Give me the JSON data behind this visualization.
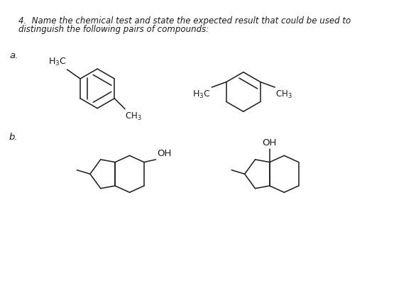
{
  "title_line1": "4.  Name the chemical test and state the expected result that could be used to",
  "title_line2": "distinguish the following pairs of compounds:",
  "label_a": "a.",
  "label_b": "b.",
  "bg_color": "#ffffff",
  "text_color": "#1a1a1a",
  "line_color": "#1a1a1a",
  "font_size_title": 8.5,
  "font_size_label": 9.5,
  "font_size_chem": 8.5
}
